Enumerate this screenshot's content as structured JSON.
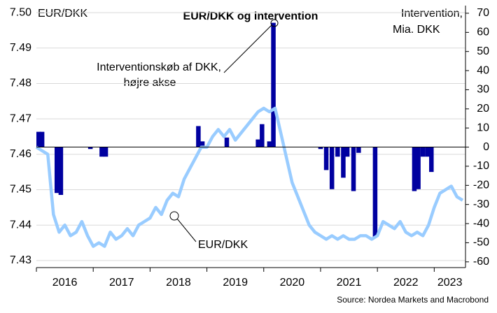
{
  "chart_data": {
    "type": "combo",
    "title": "EUR/DKK og intervention",
    "left_axis_label": "EUR/DKK",
    "right_axis_label": [
      "Intervention,",
      "Mia. DKK"
    ],
    "annotation": [
      "Interventionskøb af DKK,",
      "højre akse"
    ],
    "source": "Source: Nordea Markets and Macrobond",
    "categories": [
      "2016",
      "2017",
      "2018",
      "2019",
      "2020",
      "2021",
      "2022",
      "2023"
    ],
    "xlim": [
      2016,
      2023.55
    ],
    "ylim": [
      7.428,
      7.502
    ],
    "yticks": [
      7.43,
      7.44,
      7.45,
      7.46,
      7.47,
      7.48,
      7.49,
      {
        "value": 7.5,
        "label": "7.50"
      }
    ],
    "y2lim": [
      -63,
      74
    ],
    "y2ticks": [
      -60,
      -50,
      -40,
      -30,
      -20,
      -10,
      0,
      10,
      20,
      30,
      40,
      50,
      60,
      70
    ],
    "grid": true,
    "series": [
      {
        "name": "EUR/DKK",
        "type": "line",
        "color": "#99ccff",
        "x": [
          2016.0,
          2016.1,
          2016.2,
          2016.3,
          2016.4,
          2016.5,
          2016.6,
          2016.7,
          2016.8,
          2016.9,
          2017.0,
          2017.1,
          2017.2,
          2017.3,
          2017.4,
          2017.5,
          2017.6,
          2017.7,
          2017.8,
          2017.9,
          2018.0,
          2018.1,
          2018.2,
          2018.3,
          2018.4,
          2018.5,
          2018.6,
          2018.7,
          2018.8,
          2018.9,
          2019.0,
          2019.1,
          2019.2,
          2019.3,
          2019.4,
          2019.5,
          2019.6,
          2019.7,
          2019.8,
          2019.9,
          2020.0,
          2020.1,
          2020.2,
          2020.3,
          2020.4,
          2020.5,
          2020.6,
          2020.7,
          2020.8,
          2020.9,
          2021.0,
          2021.1,
          2021.2,
          2021.3,
          2021.4,
          2021.5,
          2021.6,
          2021.7,
          2021.8,
          2021.9,
          2022.0,
          2022.1,
          2022.2,
          2022.3,
          2022.4,
          2022.5,
          2022.6,
          2022.7,
          2022.8,
          2022.9,
          2023.0,
          2023.1,
          2023.2,
          2023.3,
          2023.4,
          2023.5
        ],
        "values": [
          7.462,
          7.461,
          7.46,
          7.443,
          7.438,
          7.44,
          7.437,
          7.438,
          7.441,
          7.437,
          7.434,
          7.435,
          7.434,
          7.438,
          7.436,
          7.437,
          7.439,
          7.437,
          7.44,
          7.441,
          7.442,
          7.445,
          7.443,
          7.447,
          7.449,
          7.448,
          7.453,
          7.456,
          7.459,
          7.462,
          7.462,
          7.465,
          7.467,
          7.465,
          7.467,
          7.464,
          7.466,
          7.468,
          7.47,
          7.472,
          7.473,
          7.472,
          7.473,
          7.466,
          7.459,
          7.452,
          7.448,
          7.444,
          7.44,
          7.438,
          7.437,
          7.436,
          7.437,
          7.436,
          7.437,
          7.436,
          7.436,
          7.437,
          7.437,
          7.436,
          7.437,
          7.441,
          7.44,
          7.439,
          7.441,
          7.438,
          7.437,
          7.438,
          7.437,
          7.44,
          7.445,
          7.449,
          7.45,
          7.451,
          7.448,
          7.447
        ]
      },
      {
        "type": "bar",
        "axis": "y2",
        "color": "#0000a0",
        "x": [
          2016.04,
          2016.1,
          2016.36,
          2016.43,
          2016.95,
          2017.15,
          2017.22,
          2018.85,
          2018.92,
          2019.35,
          2019.9,
          2019.97,
          2020.1,
          2020.17,
          2021.0,
          2021.1,
          2021.2,
          2021.3,
          2021.4,
          2021.47,
          2021.58,
          2021.67,
          2021.96,
          2022.65,
          2022.72,
          2022.8,
          2022.88,
          2022.95
        ],
        "values": [
          8,
          8,
          -24,
          -25,
          -1,
          -5,
          -5,
          11,
          3,
          5,
          4,
          12,
          3,
          65,
          -1,
          -12,
          -22,
          -5,
          -16,
          -5,
          -23,
          -3,
          -47,
          -23,
          -22,
          -5,
          -5,
          -13
        ]
      }
    ]
  }
}
